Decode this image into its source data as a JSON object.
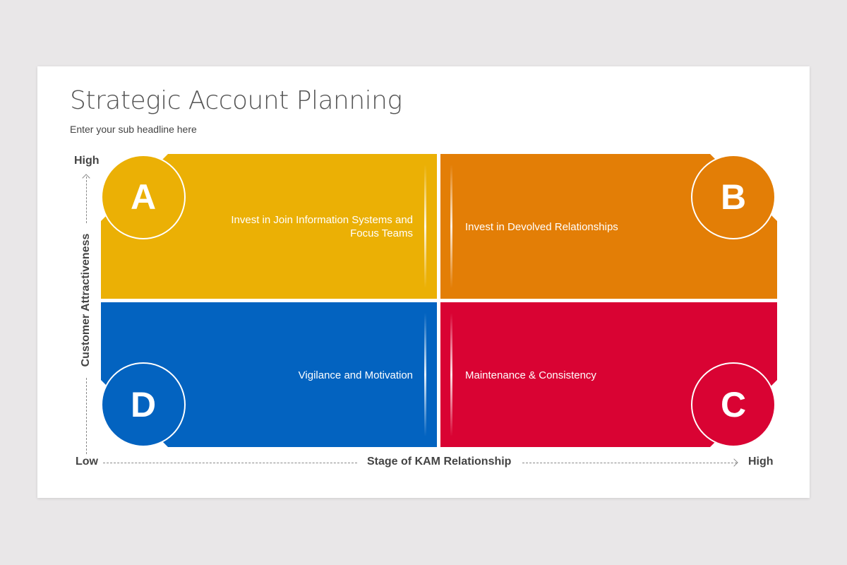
{
  "title": "Strategic Account Planning",
  "subtitle": "Enter your sub headline here",
  "y_axis": {
    "label": "Customer Attractiveness",
    "high": "High",
    "low": "Low"
  },
  "x_axis": {
    "label": "Stage of KAM Relationship",
    "high": "High",
    "low": "Low"
  },
  "quadrants": [
    {
      "letter": "A",
      "text": "Invest in Join Information Systems and Focus Teams",
      "color": "#ebb005"
    },
    {
      "letter": "B",
      "text": "Invest in Devolved Relationships",
      "color": "#e37e06"
    },
    {
      "letter": "D",
      "text": "Vigilance and Motivation",
      "color": "#0363c0"
    },
    {
      "letter": "C",
      "text": "Maintenance & Consistency",
      "color": "#d90333"
    }
  ]
}
